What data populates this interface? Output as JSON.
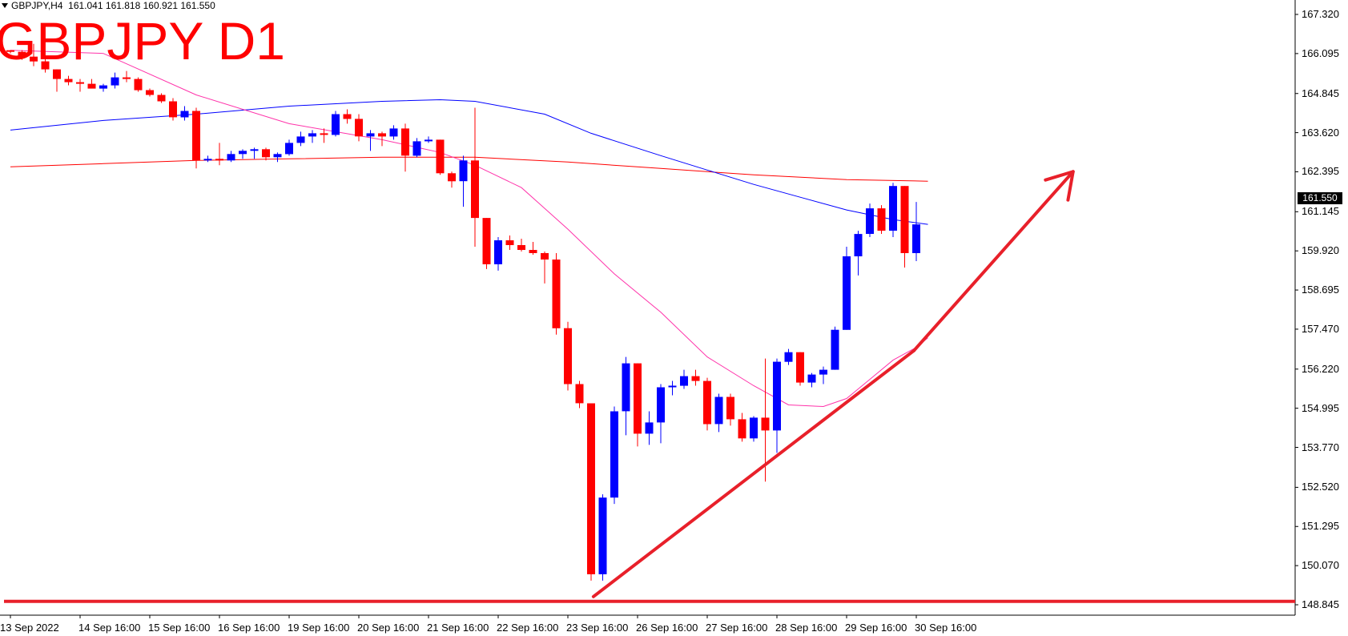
{
  "header": {
    "symbol_timeframe": "GBPJPY,H4",
    "open": "161.041",
    "high": "161.818",
    "low": "160.921",
    "close": "161.550"
  },
  "overlay_title": "GBPJPY D1",
  "last_price_label": "161.550",
  "colors": {
    "bull_candle": "#0000ff",
    "bear_candle": "#ff0000",
    "ma_fast": "#ff33aa",
    "ma_mid": "#0000ff",
    "ma_slow": "#ff0000",
    "annotation": "#e8202a"
  },
  "chart_data": {
    "type": "candlestick",
    "y_axis": {
      "ticks": [
        "167.320",
        "166.095",
        "164.845",
        "163.620",
        "162.395",
        "161.145",
        "159.920",
        "158.695",
        "157.470",
        "156.220",
        "154.995",
        "153.770",
        "152.520",
        "151.295",
        "150.070",
        "148.845"
      ],
      "tick_values": [
        167.32,
        166.095,
        164.845,
        163.62,
        162.395,
        161.145,
        159.92,
        158.695,
        157.47,
        156.22,
        154.995,
        153.77,
        152.52,
        151.295,
        150.07,
        148.845
      ],
      "range": [
        148.6,
        167.45
      ]
    },
    "x_axis": {
      "labels": [
        "13 Sep 2022",
        "14 Sep 16:00",
        "15 Sep 16:00",
        "16 Sep 16:00",
        "19 Sep 16:00",
        "20 Sep 16:00",
        "21 Sep 16:00",
        "22 Sep 16:00",
        "23 Sep 16:00",
        "26 Sep 16:00",
        "27 Sep 16:00",
        "28 Sep 16:00",
        "29 Sep 16:00",
        "30 Sep 16:00"
      ],
      "label_bar_index": [
        0,
        6,
        12,
        18,
        24,
        30,
        36,
        42,
        48,
        54,
        60,
        66,
        72,
        78
      ],
      "bars_total": 79
    },
    "candles": [
      [
        166.2,
        166.2,
        166.1,
        166.15
      ],
      [
        166.15,
        166.2,
        165.9,
        166.0
      ],
      [
        166.0,
        166.4,
        165.7,
        165.85
      ],
      [
        165.85,
        166.0,
        165.5,
        165.6
      ],
      [
        165.6,
        165.6,
        164.9,
        165.3
      ],
      [
        165.3,
        165.4,
        165.1,
        165.2
      ],
      [
        165.2,
        165.3,
        164.9,
        165.15
      ],
      [
        165.15,
        165.3,
        165.0,
        165.0
      ],
      [
        165.0,
        165.15,
        164.9,
        165.1
      ],
      [
        165.1,
        165.5,
        165.0,
        165.35
      ],
      [
        165.35,
        165.55,
        165.2,
        165.3
      ],
      [
        165.3,
        165.35,
        164.9,
        164.95
      ],
      [
        164.95,
        165.0,
        164.75,
        164.8
      ],
      [
        164.8,
        164.85,
        164.55,
        164.6
      ],
      [
        164.6,
        164.7,
        164.0,
        164.1
      ],
      [
        164.1,
        164.45,
        164.0,
        164.3
      ],
      [
        164.3,
        164.4,
        162.5,
        162.75
      ],
      [
        162.75,
        162.9,
        162.7,
        162.8
      ],
      [
        162.8,
        163.3,
        162.6,
        162.75
      ],
      [
        162.75,
        163.05,
        162.7,
        162.95
      ],
      [
        162.95,
        163.1,
        162.8,
        163.05
      ],
      [
        163.05,
        163.15,
        162.8,
        163.1
      ],
      [
        163.1,
        163.15,
        162.75,
        162.85
      ],
      [
        162.85,
        163.0,
        162.7,
        162.95
      ],
      [
        162.95,
        163.4,
        162.9,
        163.3
      ],
      [
        163.3,
        163.65,
        163.2,
        163.5
      ],
      [
        163.5,
        163.7,
        163.3,
        163.6
      ],
      [
        163.6,
        163.75,
        163.3,
        163.55
      ],
      [
        163.55,
        164.3,
        163.5,
        164.2
      ],
      [
        164.2,
        164.35,
        163.9,
        164.05
      ],
      [
        164.05,
        164.2,
        163.35,
        163.5
      ],
      [
        163.5,
        163.7,
        163.05,
        163.6
      ],
      [
        163.6,
        163.65,
        163.2,
        163.5
      ],
      [
        163.5,
        163.85,
        163.4,
        163.75
      ],
      [
        163.75,
        163.9,
        162.4,
        162.9
      ],
      [
        162.9,
        163.45,
        162.85,
        163.35
      ],
      [
        163.35,
        163.5,
        163.3,
        163.4
      ],
      [
        163.4,
        163.4,
        162.3,
        162.35
      ],
      [
        162.35,
        162.4,
        161.9,
        162.1
      ],
      [
        162.1,
        162.9,
        161.3,
        162.75
      ],
      [
        162.75,
        164.4,
        160.05,
        160.95
      ],
      [
        160.95,
        160.95,
        159.35,
        159.5
      ],
      [
        159.5,
        160.35,
        159.3,
        160.25
      ],
      [
        160.25,
        160.4,
        159.95,
        160.1
      ],
      [
        160.1,
        160.3,
        159.9,
        159.95
      ],
      [
        159.95,
        160.2,
        159.8,
        159.85
      ],
      [
        159.85,
        159.9,
        158.9,
        159.65
      ],
      [
        159.65,
        159.85,
        157.3,
        157.5
      ],
      [
        157.5,
        157.7,
        155.55,
        155.75
      ],
      [
        155.75,
        155.85,
        155.0,
        155.15
      ],
      [
        155.15,
        155.15,
        149.6,
        149.8
      ],
      [
        149.8,
        152.3,
        149.6,
        152.2
      ],
      [
        152.2,
        155.05,
        152.0,
        154.9
      ],
      [
        154.9,
        156.6,
        154.15,
        156.4
      ],
      [
        156.4,
        156.4,
        153.8,
        154.2
      ],
      [
        154.2,
        154.9,
        153.85,
        154.55
      ],
      [
        154.55,
        155.75,
        153.9,
        155.65
      ],
      [
        155.65,
        155.85,
        155.4,
        155.7
      ],
      [
        155.7,
        156.2,
        155.6,
        156.0
      ],
      [
        156.0,
        156.2,
        155.7,
        155.85
      ],
      [
        155.85,
        155.95,
        154.3,
        154.5
      ],
      [
        154.5,
        155.45,
        154.25,
        155.35
      ],
      [
        155.35,
        155.45,
        154.45,
        154.65
      ],
      [
        154.65,
        154.85,
        153.95,
        154.05
      ],
      [
        154.05,
        154.75,
        153.95,
        154.7
      ],
      [
        154.7,
        156.55,
        152.7,
        154.3
      ],
      [
        154.3,
        156.55,
        153.6,
        156.45
      ],
      [
        156.45,
        156.85,
        156.35,
        156.75
      ],
      [
        156.75,
        156.75,
        155.7,
        155.8
      ],
      [
        155.8,
        156.1,
        155.65,
        156.05
      ],
      [
        156.05,
        156.3,
        155.75,
        156.2
      ],
      [
        156.2,
        157.55,
        156.2,
        157.45
      ],
      [
        157.45,
        160.05,
        157.45,
        159.75
      ],
      [
        159.75,
        160.55,
        159.15,
        160.45
      ],
      [
        160.45,
        161.4,
        160.35,
        161.25
      ],
      [
        161.25,
        161.35,
        160.45,
        160.55
      ],
      [
        160.55,
        162.05,
        160.35,
        161.95
      ],
      [
        161.95,
        161.95,
        159.4,
        159.85
      ],
      [
        159.85,
        161.45,
        159.6,
        160.75
      ]
    ],
    "ma_fast": [
      [
        0,
        166.2
      ],
      [
        8,
        166.1
      ],
      [
        16,
        164.8
      ],
      [
        24,
        163.9
      ],
      [
        32,
        163.4
      ],
      [
        37,
        163.0
      ],
      [
        40,
        162.6
      ],
      [
        44,
        161.9
      ],
      [
        48,
        160.6
      ],
      [
        52,
        159.2
      ],
      [
        56,
        158.0
      ],
      [
        60,
        156.6
      ],
      [
        64,
        155.7
      ],
      [
        67,
        155.1
      ],
      [
        70,
        155.05
      ],
      [
        72,
        155.3
      ],
      [
        74,
        155.9
      ],
      [
        76,
        156.5
      ],
      [
        78,
        156.9
      ],
      [
        79,
        157.2
      ]
    ],
    "ma_mid": [
      [
        0,
        163.7
      ],
      [
        8,
        164.0
      ],
      [
        16,
        164.2
      ],
      [
        24,
        164.45
      ],
      [
        32,
        164.6
      ],
      [
        37,
        164.65
      ],
      [
        40,
        164.6
      ],
      [
        46,
        164.2
      ],
      [
        50,
        163.6
      ],
      [
        56,
        162.9
      ],
      [
        60,
        162.45
      ],
      [
        64,
        162.0
      ],
      [
        68,
        161.6
      ],
      [
        72,
        161.2
      ],
      [
        76,
        160.9
      ],
      [
        79,
        160.75
      ]
    ],
    "ma_slow": [
      [
        0,
        162.55
      ],
      [
        8,
        162.65
      ],
      [
        16,
        162.75
      ],
      [
        24,
        162.8
      ],
      [
        32,
        162.85
      ],
      [
        40,
        162.85
      ],
      [
        48,
        162.7
      ],
      [
        56,
        162.5
      ],
      [
        64,
        162.3
      ],
      [
        72,
        162.15
      ],
      [
        79,
        162.1
      ]
    ],
    "annotations": {
      "support_level": 148.95,
      "trendline": [
        [
          50.2,
          149.1
        ],
        [
          77.8,
          156.8
        ]
      ],
      "arrow": [
        [
          77.8,
          156.8
        ],
        [
          91.5,
          162.4
        ]
      ]
    }
  }
}
